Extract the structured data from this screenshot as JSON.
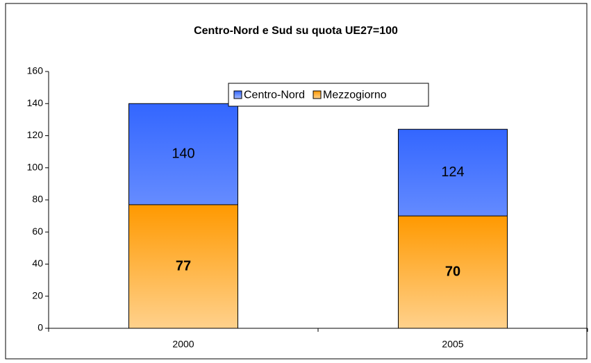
{
  "chart_data": {
    "type": "bar",
    "mode": "overlap",
    "title": "Centro-Nord e Sud su quota UE27=100",
    "categories": [
      "2000",
      "2005"
    ],
    "series": [
      {
        "name": "Centro-Nord",
        "color": "#3366ff",
        "values": [
          140,
          124
        ]
      },
      {
        "name": "Mezzogiorno",
        "color": "#ff9900",
        "values": [
          77,
          70
        ]
      }
    ],
    "ylim": [
      0,
      160
    ],
    "yticks": [
      0,
      20,
      40,
      60,
      80,
      100,
      120,
      140,
      160
    ],
    "legend": "top",
    "grid": false
  }
}
